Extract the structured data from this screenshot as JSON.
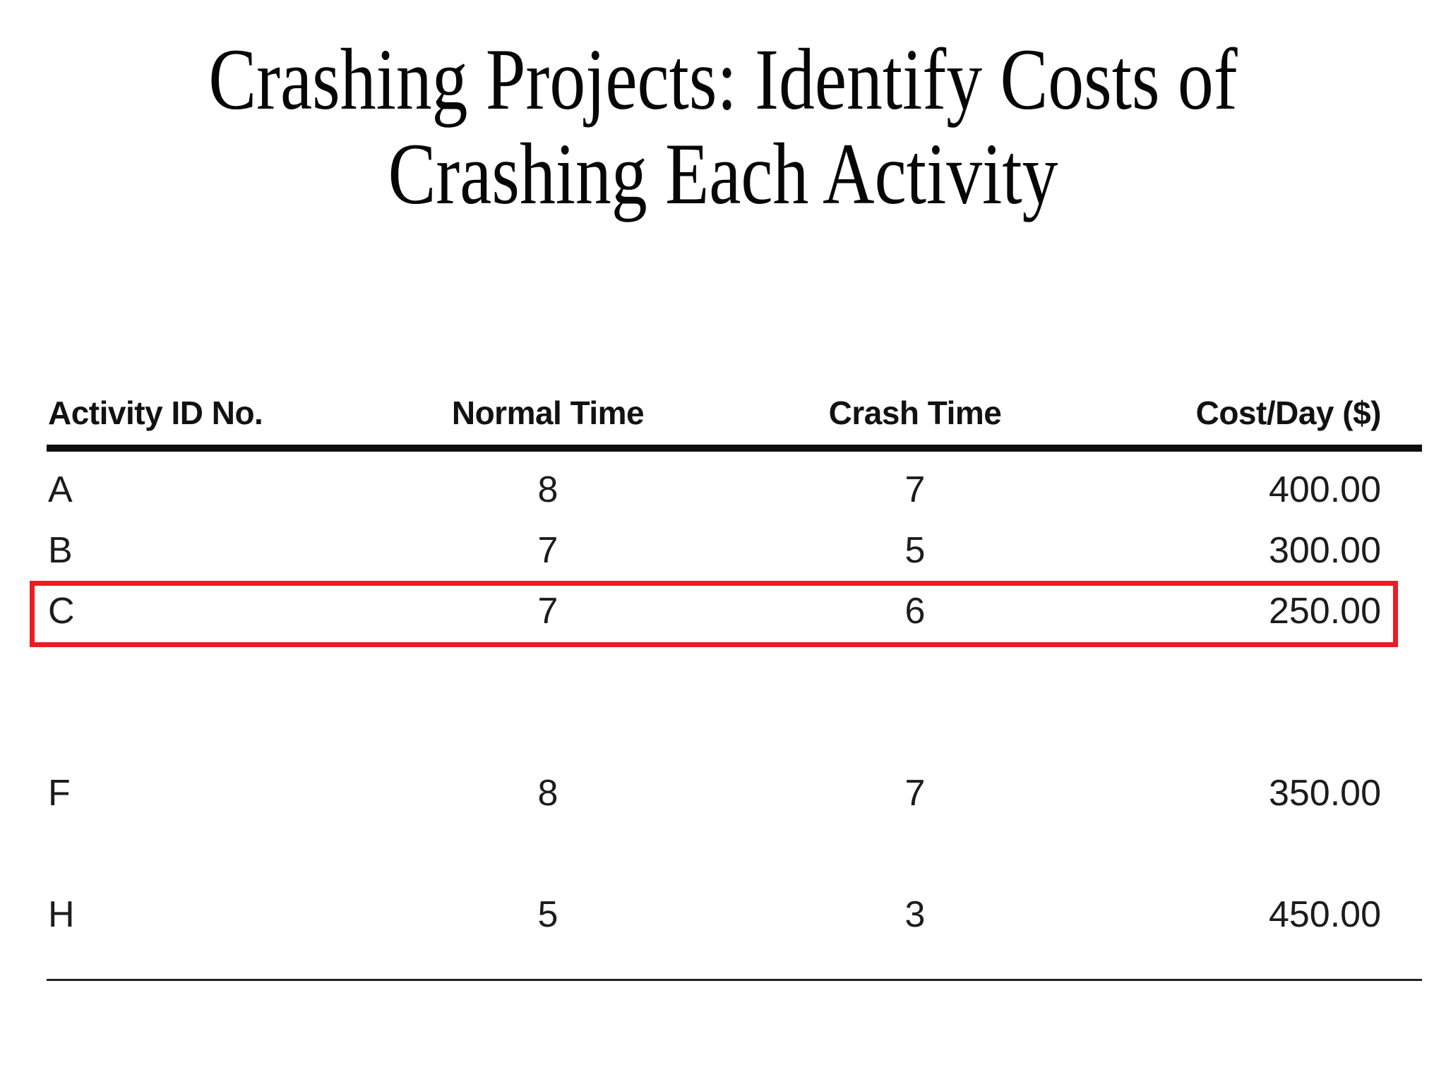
{
  "slide": {
    "title_line1": "Crashing Projects: Identify Costs of",
    "title_line2": "Crashing Each Activity"
  },
  "table": {
    "headers": [
      "Activity ID No.",
      "Normal Time",
      "Crash Time",
      "Cost/Day ($)"
    ],
    "rows": [
      {
        "id": "A",
        "normal_time": "8",
        "crash_time": "7",
        "cost_per_day": "400.00",
        "highlighted": false
      },
      {
        "id": "B",
        "normal_time": "7",
        "crash_time": "5",
        "cost_per_day": "300.00",
        "highlighted": false
      },
      {
        "id": "C",
        "normal_time": "7",
        "crash_time": "6",
        "cost_per_day": "250.00",
        "highlighted": true
      },
      {
        "id": "F",
        "normal_time": "8",
        "crash_time": "7",
        "cost_per_day": "350.00",
        "highlighted": false
      },
      {
        "id": "H",
        "normal_time": "5",
        "crash_time": "3",
        "cost_per_day": "450.00",
        "highlighted": false
      }
    ],
    "highlight_color": "#ed1c24",
    "text_color": "#141414"
  },
  "chart_data": {
    "type": "table",
    "title": "Crashing Projects: Identify Costs of Crashing Each Activity",
    "columns": [
      "Activity ID No.",
      "Normal Time",
      "Crash Time",
      "Cost/Day ($)"
    ],
    "rows": [
      [
        "A",
        8,
        7,
        "400.00"
      ],
      [
        "B",
        7,
        5,
        "300.00"
      ],
      [
        "C",
        7,
        6,
        "250.00"
      ],
      [
        "F",
        8,
        7,
        "350.00"
      ],
      [
        "H",
        5,
        3,
        "450.00"
      ]
    ],
    "highlighted_row": "C",
    "notes": "Rows D, E and G are blank gaps in the table; row C is outlined with a red rectangle."
  }
}
